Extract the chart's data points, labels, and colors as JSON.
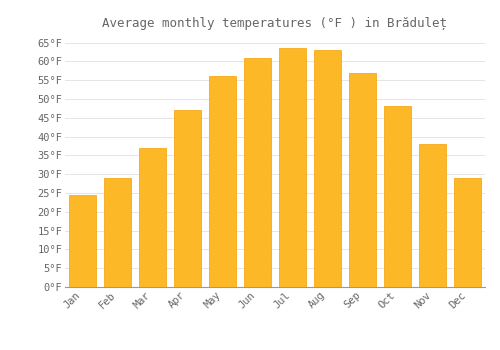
{
  "title": "Average monthly temperatures (°F ) in Brăduleț",
  "months": [
    "Jan",
    "Feb",
    "Mar",
    "Apr",
    "May",
    "Jun",
    "Jul",
    "Aug",
    "Sep",
    "Oct",
    "Nov",
    "Dec"
  ],
  "values": [
    24.5,
    29.0,
    37.0,
    47.0,
    56.0,
    61.0,
    63.5,
    63.0,
    57.0,
    48.0,
    38.0,
    29.0
  ],
  "bar_color": "#FDB827",
  "bar_edge_color": "#F5A000",
  "background_color": "#FFFFFF",
  "grid_color": "#E0E0E0",
  "text_color": "#666666",
  "ytick_min": 0,
  "ytick_max": 65,
  "ytick_step": 5,
  "title_fontsize": 9,
  "tick_fontsize": 7.5
}
